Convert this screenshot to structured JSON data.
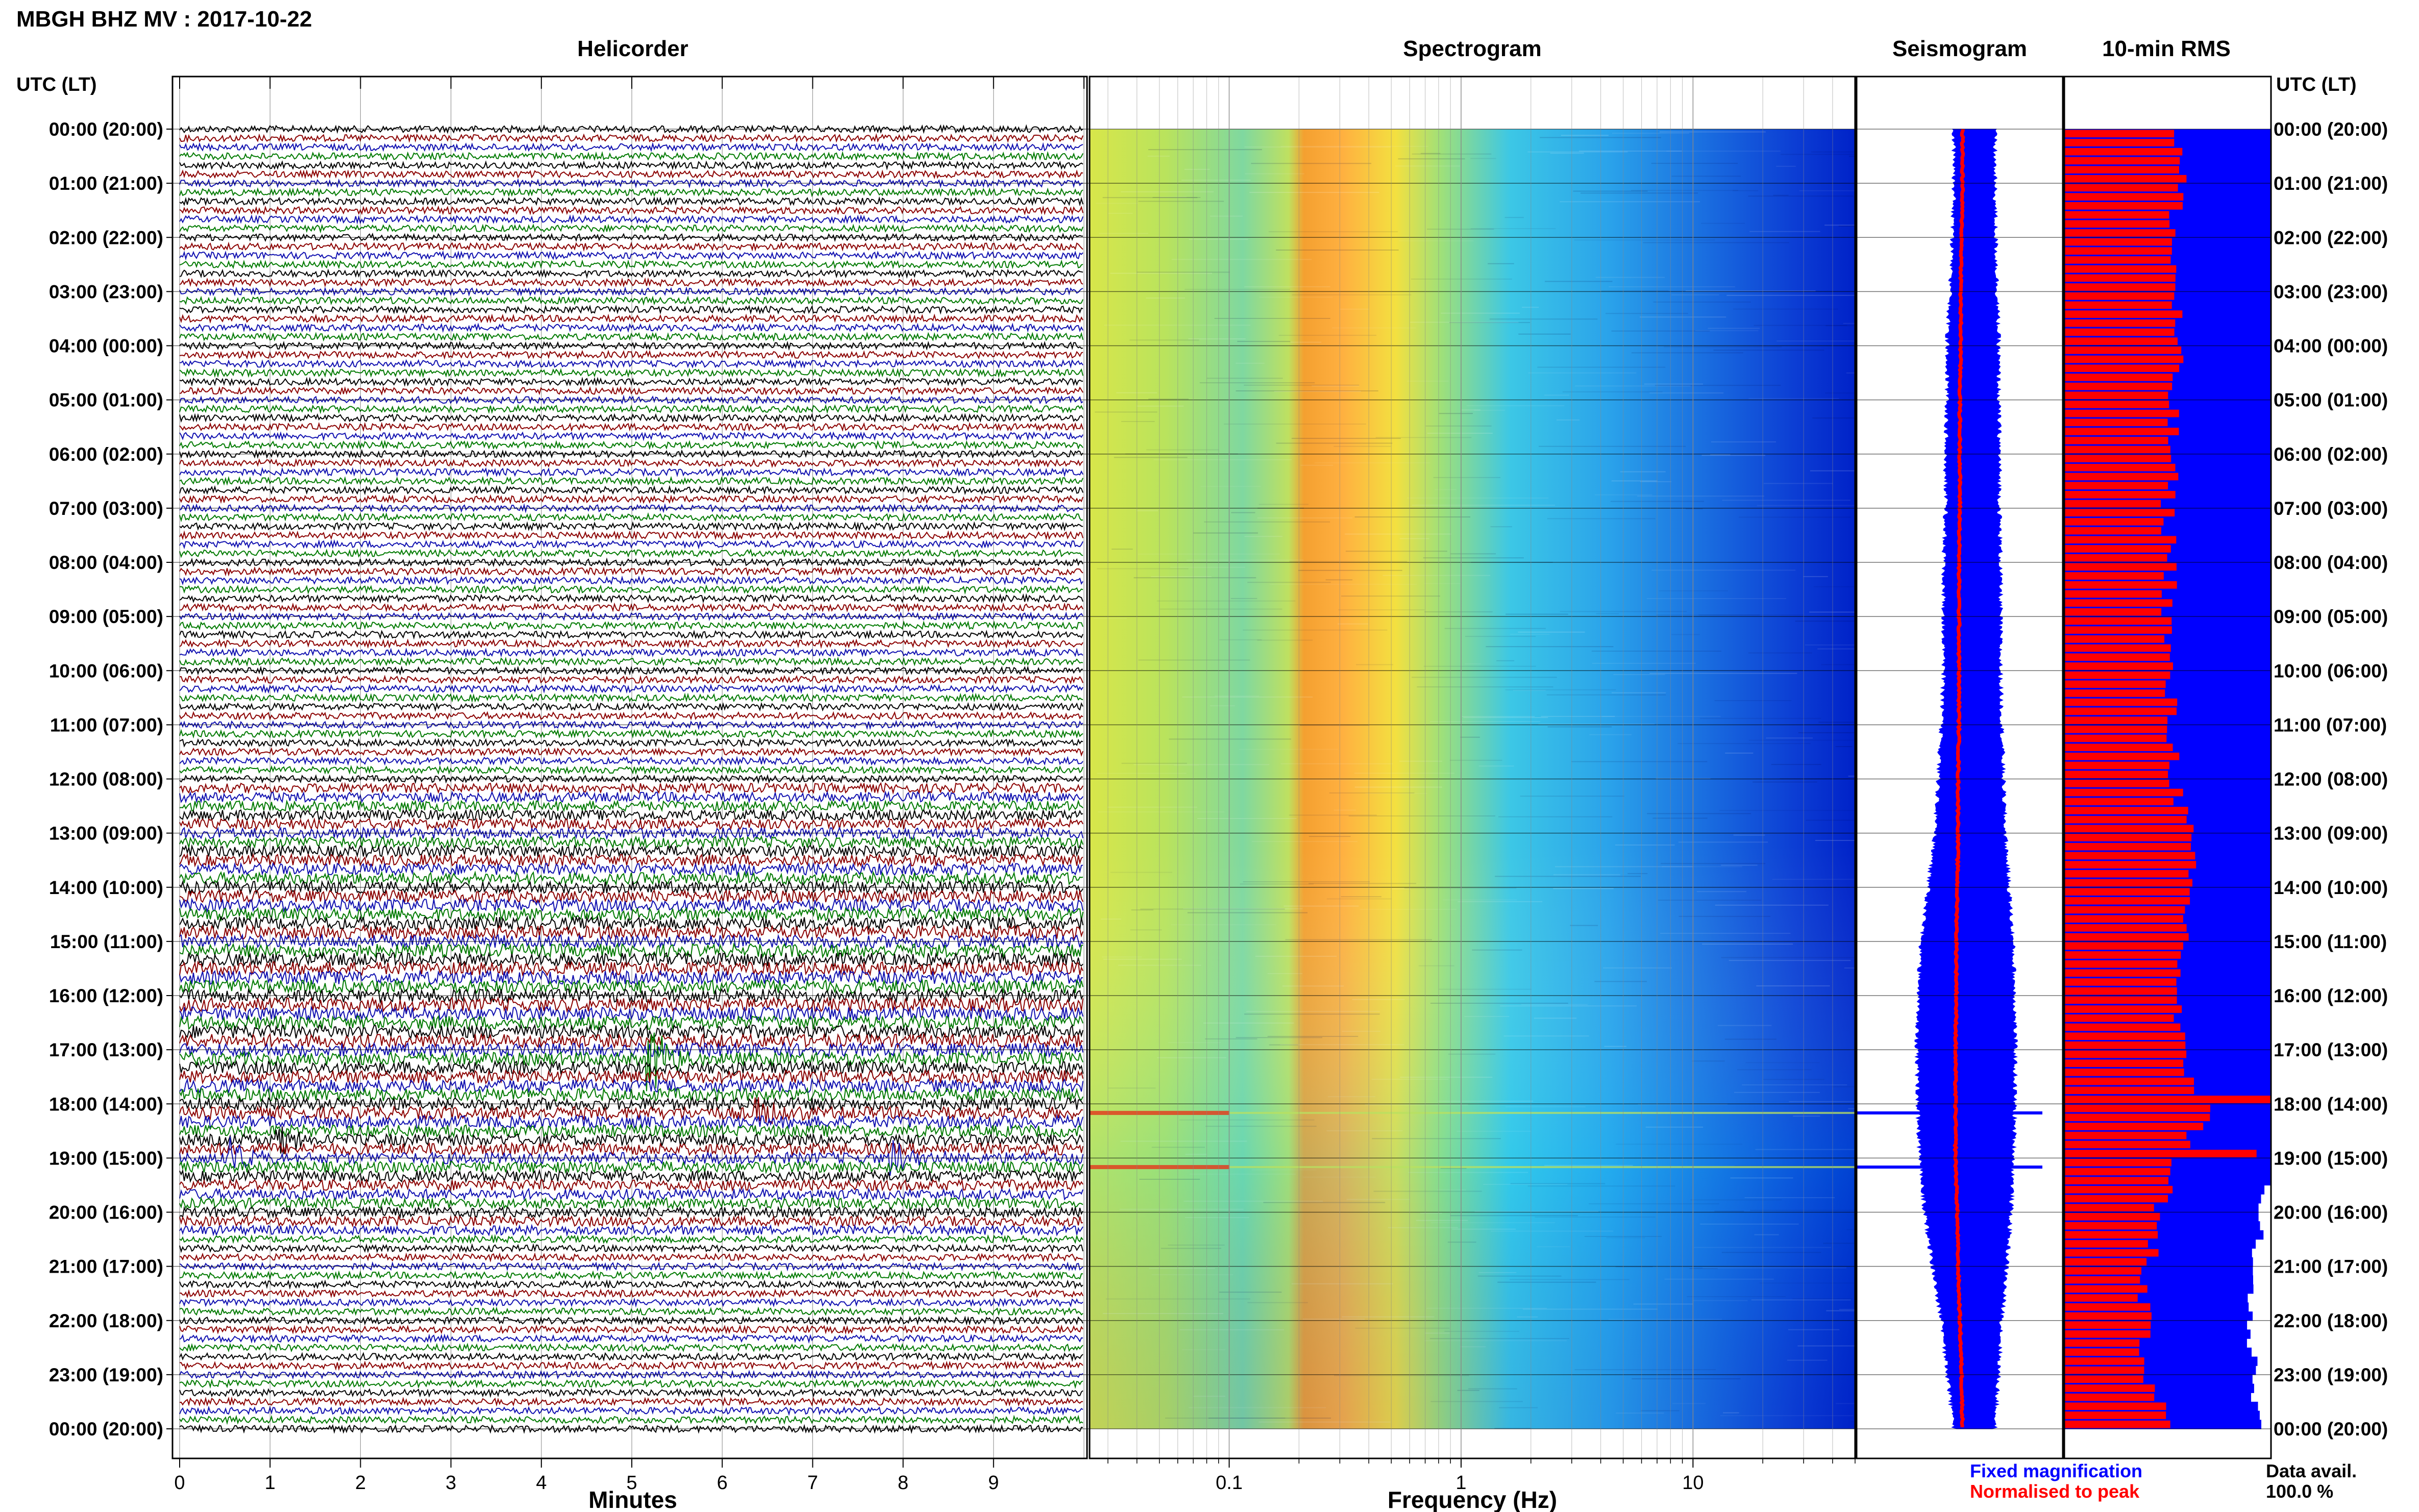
{
  "header": {
    "title": "MBGH BHZ MV : 2017-10-22"
  },
  "panels": {
    "helicorder": "Helicorder",
    "spectrogram": "Spectrogram",
    "seismogram": "Seismogram",
    "rms": "10-min RMS"
  },
  "axes": {
    "left_header": "UTC (LT)",
    "right_header": "UTC (LT)",
    "minutes_label": "Minutes",
    "frequency_label": "Frequency (Hz)",
    "minutes_ticks": [
      "0",
      "1",
      "2",
      "3",
      "4",
      "5",
      "6",
      "7",
      "8",
      "9"
    ],
    "frequency_ticks": [
      "0.1",
      "1",
      "10"
    ],
    "time_labels": [
      "00:00 (20:00)",
      "01:00 (21:00)",
      "02:00 (22:00)",
      "03:00 (23:00)",
      "04:00 (00:00)",
      "05:00 (01:00)",
      "06:00 (02:00)",
      "07:00 (03:00)",
      "08:00 (04:00)",
      "09:00 (05:00)",
      "10:00 (06:00)",
      "11:00 (07:00)",
      "12:00 (08:00)",
      "13:00 (09:00)",
      "14:00 (10:00)",
      "15:00 (11:00)",
      "16:00 (12:00)",
      "17:00 (13:00)",
      "18:00 (14:00)",
      "19:00 (15:00)",
      "20:00 (16:00)",
      "21:00 (17:00)",
      "22:00 (18:00)",
      "23:00 (19:00)",
      "00:00 (20:00)"
    ]
  },
  "legend": {
    "fixed": "Fixed magnification",
    "normalised": "Normalised to peak",
    "avail_label": "Data avail.",
    "avail_value": "100.0 %"
  },
  "colors": {
    "trace_black": "#000000",
    "trace_red": "#8b0000",
    "trace_blue": "#1010b0",
    "trace_green": "#007a00",
    "fixed": "#0000ff",
    "normalised": "#ff0000"
  },
  "chart_data": [
    {
      "type": "line",
      "panel": "helicorder",
      "x_range_minutes": [
        0,
        10
      ],
      "rows_per_day": 144,
      "row_minutes": 10,
      "trace_color_cycle": [
        "black",
        "red",
        "blue",
        "green"
      ],
      "events": [
        {
          "utc": "17:10",
          "minute": 5.2,
          "note": "largest spike"
        },
        {
          "utc": "18:10",
          "minute": 6.4
        },
        {
          "utc": "18:40",
          "minute": 1.1
        },
        {
          "utc": "19:00",
          "minute": 0.6
        },
        {
          "utc": "19:00",
          "minute": 7.9
        }
      ]
    },
    {
      "type": "heatmap",
      "panel": "spectrogram",
      "x_scale": "log",
      "x_range_hz": [
        0.025,
        50
      ],
      "y_range_utc_hours": [
        0,
        24
      ],
      "peak_band_hz": [
        0.2,
        0.5
      ],
      "transients_utc": [
        "18:10",
        "19:10"
      ]
    },
    {
      "type": "area",
      "panel": "seismogram",
      "y_utc_hours": [
        0,
        1,
        2,
        3,
        4,
        5,
        6,
        7,
        8,
        9,
        10,
        11,
        12,
        13,
        14,
        15,
        16,
        17,
        18,
        19,
        20,
        21,
        22,
        23,
        24
      ],
      "fixed_halfwidth_rel": [
        0.3,
        0.3,
        0.32,
        0.35,
        0.38,
        0.38,
        0.4,
        0.4,
        0.42,
        0.42,
        0.42,
        0.45,
        0.48,
        0.52,
        0.6,
        0.68,
        0.72,
        0.73,
        0.72,
        0.7,
        0.64,
        0.55,
        0.45,
        0.38,
        0.3
      ],
      "normalised_offset_rel": [
        0.0,
        0.0,
        -0.01,
        -0.02,
        -0.02,
        -0.03,
        -0.03,
        -0.03,
        -0.04,
        -0.04,
        -0.04,
        -0.04,
        -0.05,
        -0.05,
        -0.06,
        -0.07,
        -0.07,
        -0.08,
        -0.08,
        -0.08,
        -0.06,
        -0.05,
        -0.03,
        -0.01,
        0.0
      ]
    },
    {
      "type": "bar",
      "panel": "10-min RMS",
      "orientation": "horizontal",
      "red_fraction_at_hour": [
        0.55,
        0.56,
        0.52,
        0.54,
        0.54,
        0.52,
        0.52,
        0.5,
        0.52,
        0.5,
        0.5,
        0.52,
        0.54,
        0.6,
        0.6,
        0.58,
        0.54,
        0.56,
        0.7,
        0.55,
        0.45,
        0.4,
        0.38,
        0.42,
        0.5
      ],
      "red_peak_utc": [
        "17:50",
        "18:50"
      ],
      "blue_fraction_last_hours": [
        0.98,
        0.95,
        0.92,
        0.94,
        0.96
      ]
    }
  ]
}
